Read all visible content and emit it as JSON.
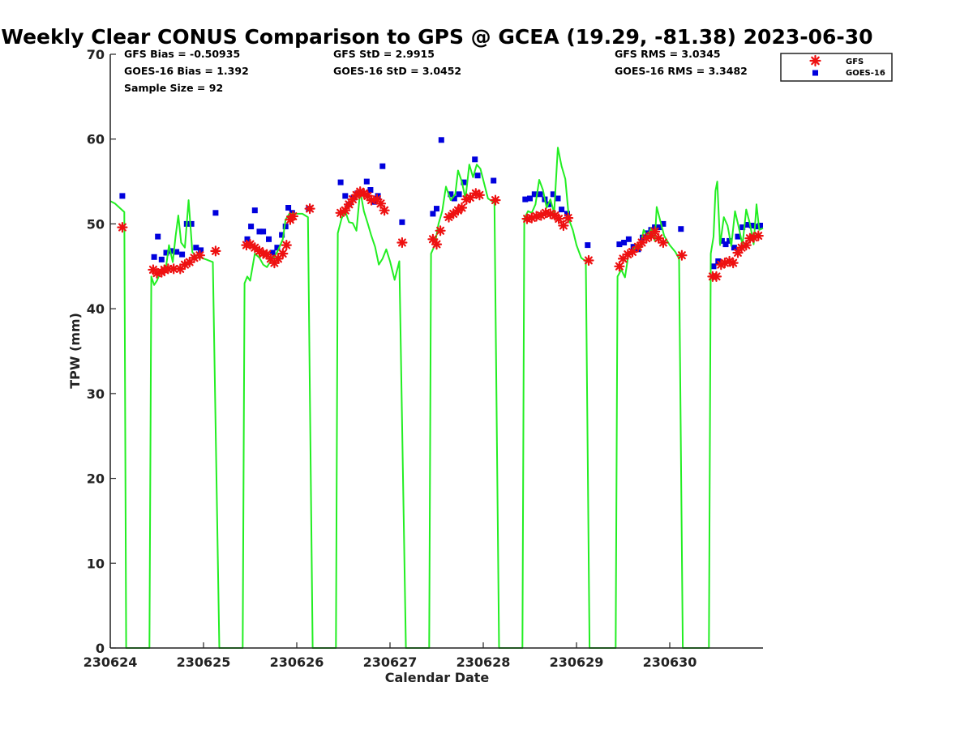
{
  "stats": {
    "gfs_bias": "GFS Bias = -0.50935",
    "goes_bias": "GOES-16 Bias = 1.392",
    "sample_size": "Sample Size = 92",
    "gfs_std": "GFS StD = 2.9915",
    "goes_std": "GOES-16 StD = 3.0452",
    "gfs_rms": "GFS RMS = 3.0345",
    "goes_rms": "GOES-16 RMS = 3.3482"
  },
  "colors": {
    "gfs": "#ee1111",
    "goes": "#0000dd",
    "gps": "#22ee22"
  },
  "chart_data": {
    "type": "scatter",
    "title": "Weekly Clear CONUS Comparison to GPS @ GCEA (19.29, -81.38) 2023-06-30",
    "xlabel": "Calendar Date",
    "ylabel": "TPW (mm)",
    "xlim": [
      0,
      7
    ],
    "ylim": [
      0,
      70
    ],
    "x_ticks": [
      0,
      1,
      2,
      3,
      4,
      5,
      6
    ],
    "x_tick_labels": [
      "230624",
      "230625",
      "230626",
      "230627",
      "230628",
      "230629",
      "230630"
    ],
    "y_ticks": [
      0,
      10,
      20,
      30,
      40,
      50,
      60,
      70
    ],
    "grid": false,
    "legend_position": "top-right",
    "series": [
      {
        "name": "GFS",
        "marker": "asterisk",
        "color": "#ee1111",
        "points": [
          [
            0.13,
            49.6
          ],
          [
            0.46,
            44.6
          ],
          [
            0.5,
            44.2
          ],
          [
            0.55,
            44.3
          ],
          [
            0.58,
            44.6
          ],
          [
            0.62,
            44.7
          ],
          [
            0.68,
            44.7
          ],
          [
            0.75,
            44.7
          ],
          [
            0.8,
            45.2
          ],
          [
            0.85,
            45.5
          ],
          [
            0.9,
            46.0
          ],
          [
            0.96,
            46.3
          ],
          [
            1.13,
            46.8
          ],
          [
            1.46,
            47.5
          ],
          [
            1.5,
            47.6
          ],
          [
            1.55,
            47.2
          ],
          [
            1.6,
            46.8
          ],
          [
            1.64,
            46.5
          ],
          [
            1.68,
            46.4
          ],
          [
            1.72,
            45.9
          ],
          [
            1.76,
            45.4
          ],
          [
            1.8,
            45.9
          ],
          [
            1.85,
            46.5
          ],
          [
            1.89,
            47.5
          ],
          [
            1.93,
            50.5
          ],
          [
            1.96,
            50.9
          ],
          [
            2.14,
            51.8
          ],
          [
            2.47,
            51.3
          ],
          [
            2.52,
            51.6
          ],
          [
            2.56,
            52.3
          ],
          [
            2.6,
            52.9
          ],
          [
            2.64,
            53.4
          ],
          [
            2.68,
            53.8
          ],
          [
            2.72,
            53.6
          ],
          [
            2.76,
            53.3
          ],
          [
            2.8,
            52.8
          ],
          [
            2.86,
            52.9
          ],
          [
            2.9,
            52.4
          ],
          [
            2.94,
            51.6
          ],
          [
            3.13,
            47.8
          ],
          [
            3.46,
            48.2
          ],
          [
            3.5,
            47.6
          ],
          [
            3.54,
            49.2
          ],
          [
            3.63,
            50.8
          ],
          [
            3.68,
            51.2
          ],
          [
            3.73,
            51.6
          ],
          [
            3.77,
            51.9
          ],
          [
            3.82,
            52.9
          ],
          [
            3.86,
            53.1
          ],
          [
            3.92,
            53.6
          ],
          [
            3.96,
            53.4
          ],
          [
            4.13,
            52.8
          ],
          [
            4.47,
            50.6
          ],
          [
            4.52,
            50.7
          ],
          [
            4.57,
            50.9
          ],
          [
            4.62,
            51.0
          ],
          [
            4.67,
            51.3
          ],
          [
            4.72,
            51.2
          ],
          [
            4.77,
            51.0
          ],
          [
            4.81,
            50.6
          ],
          [
            4.86,
            49.8
          ],
          [
            4.91,
            50.7
          ],
          [
            5.13,
            45.7
          ],
          [
            5.46,
            45.0
          ],
          [
            5.5,
            45.9
          ],
          [
            5.55,
            46.4
          ],
          [
            5.6,
            46.7
          ],
          [
            5.66,
            47.3
          ],
          [
            5.7,
            47.8
          ],
          [
            5.75,
            48.3
          ],
          [
            5.8,
            48.6
          ],
          [
            5.84,
            49.1
          ],
          [
            5.88,
            48.3
          ],
          [
            5.93,
            47.8
          ],
          [
            6.13,
            46.3
          ],
          [
            6.46,
            43.8
          ],
          [
            6.5,
            43.8
          ],
          [
            6.55,
            45.2
          ],
          [
            6.59,
            45.4
          ],
          [
            6.64,
            45.6
          ],
          [
            6.68,
            45.4
          ],
          [
            6.73,
            46.6
          ],
          [
            6.77,
            47.2
          ],
          [
            6.82,
            47.5
          ],
          [
            6.86,
            48.3
          ],
          [
            6.9,
            48.4
          ],
          [
            6.95,
            48.6
          ]
        ]
      },
      {
        "name": "GOES-16",
        "marker": "square",
        "color": "#0000dd",
        "points": [
          [
            0.13,
            53.3
          ],
          [
            0.47,
            46.1
          ],
          [
            0.51,
            48.5
          ],
          [
            0.55,
            45.8
          ],
          [
            0.6,
            46.6
          ],
          [
            0.65,
            46.8
          ],
          [
            0.71,
            46.7
          ],
          [
            0.77,
            46.4
          ],
          [
            0.82,
            50.0
          ],
          [
            0.87,
            50.0
          ],
          [
            0.92,
            47.2
          ],
          [
            0.97,
            46.9
          ],
          [
            1.13,
            51.3
          ],
          [
            1.47,
            48.2
          ],
          [
            1.51,
            49.7
          ],
          [
            1.55,
            51.6
          ],
          [
            1.6,
            49.1
          ],
          [
            1.64,
            49.1
          ],
          [
            1.7,
            48.2
          ],
          [
            1.74,
            46.6
          ],
          [
            1.79,
            47.2
          ],
          [
            1.84,
            48.7
          ],
          [
            1.88,
            49.7
          ],
          [
            1.91,
            51.9
          ],
          [
            1.95,
            51.3
          ],
          [
            2.13,
            51.8
          ],
          [
            2.47,
            54.9
          ],
          [
            2.52,
            53.3
          ],
          [
            2.56,
            52.3
          ],
          [
            2.61,
            53.1
          ],
          [
            2.65,
            53.6
          ],
          [
            2.7,
            53.6
          ],
          [
            2.75,
            55.0
          ],
          [
            2.79,
            54.0
          ],
          [
            2.83,
            52.6
          ],
          [
            2.87,
            53.3
          ],
          [
            2.92,
            56.8
          ],
          [
            3.13,
            50.2
          ],
          [
            3.46,
            51.2
          ],
          [
            3.5,
            51.8
          ],
          [
            3.55,
            59.9
          ],
          [
            3.65,
            53.5
          ],
          [
            3.69,
            53.0
          ],
          [
            3.74,
            53.5
          ],
          [
            3.79,
            54.9
          ],
          [
            3.91,
            57.6
          ],
          [
            3.94,
            55.7
          ],
          [
            4.11,
            55.1
          ],
          [
            4.45,
            52.9
          ],
          [
            4.5,
            53.0
          ],
          [
            4.55,
            53.5
          ],
          [
            4.61,
            53.5
          ],
          [
            4.66,
            52.9
          ],
          [
            4.7,
            52.3
          ],
          [
            4.75,
            53.5
          ],
          [
            4.8,
            53.0
          ],
          [
            4.84,
            51.7
          ],
          [
            4.9,
            51.2
          ],
          [
            5.12,
            47.5
          ],
          [
            5.46,
            47.6
          ],
          [
            5.51,
            47.8
          ],
          [
            5.56,
            48.2
          ],
          [
            5.61,
            47.3
          ],
          [
            5.66,
            47.0
          ],
          [
            5.71,
            48.4
          ],
          [
            5.76,
            48.9
          ],
          [
            5.8,
            49.3
          ],
          [
            5.84,
            49.6
          ],
          [
            5.89,
            49.6
          ],
          [
            5.93,
            50.0
          ],
          [
            6.12,
            49.4
          ],
          [
            6.47,
            45.0
          ],
          [
            6.52,
            45.6
          ],
          [
            6.56,
            48.0
          ],
          [
            6.6,
            47.6
          ],
          [
            6.64,
            48.0
          ],
          [
            6.69,
            47.2
          ],
          [
            6.73,
            48.5
          ],
          [
            6.78,
            49.6
          ],
          [
            6.83,
            49.9
          ],
          [
            6.88,
            49.8
          ],
          [
            6.93,
            49.7
          ],
          [
            6.97,
            49.8
          ]
        ]
      },
      {
        "name": "GPS",
        "type": "line",
        "color": "#22ee22",
        "points": [
          [
            0.0,
            52.7
          ],
          [
            0.05,
            52.4
          ],
          [
            0.1,
            51.9
          ],
          [
            0.15,
            51.4
          ],
          [
            0.17,
            0
          ],
          [
            0.42,
            0
          ],
          [
            0.44,
            43.8
          ],
          [
            0.47,
            42.8
          ],
          [
            0.5,
            43.3
          ],
          [
            0.55,
            44.6
          ],
          [
            0.6,
            45.1
          ],
          [
            0.63,
            47.5
          ],
          [
            0.67,
            45.5
          ],
          [
            0.7,
            48.5
          ],
          [
            0.73,
            51.0
          ],
          [
            0.76,
            47.8
          ],
          [
            0.8,
            47.2
          ],
          [
            0.84,
            52.8
          ],
          [
            0.88,
            46.7
          ],
          [
            0.93,
            46.0
          ],
          [
            0.98,
            46.0
          ],
          [
            1.03,
            45.8
          ],
          [
            1.1,
            45.5
          ],
          [
            1.17,
            0
          ],
          [
            1.42,
            0
          ],
          [
            1.44,
            43.0
          ],
          [
            1.47,
            43.8
          ],
          [
            1.5,
            43.3
          ],
          [
            1.55,
            46.5
          ],
          [
            1.6,
            46.0
          ],
          [
            1.64,
            45.2
          ],
          [
            1.68,
            44.9
          ],
          [
            1.72,
            45.6
          ],
          [
            1.76,
            46.1
          ],
          [
            1.8,
            46.9
          ],
          [
            1.85,
            48.2
          ],
          [
            1.88,
            50.5
          ],
          [
            1.92,
            51.2
          ],
          [
            2.0,
            51.2
          ],
          [
            2.06,
            51.2
          ],
          [
            2.12,
            50.8
          ],
          [
            2.17,
            0
          ],
          [
            2.42,
            0
          ],
          [
            2.44,
            48.9
          ],
          [
            2.48,
            50.6
          ],
          [
            2.52,
            51.5
          ],
          [
            2.56,
            50.2
          ],
          [
            2.6,
            50.1
          ],
          [
            2.64,
            49.2
          ],
          [
            2.68,
            53.9
          ],
          [
            2.72,
            51.5
          ],
          [
            2.76,
            50.1
          ],
          [
            2.8,
            48.6
          ],
          [
            2.84,
            47.3
          ],
          [
            2.88,
            45.2
          ],
          [
            2.92,
            45.9
          ],
          [
            2.96,
            47.0
          ],
          [
            3.0,
            45.6
          ],
          [
            3.05,
            43.4
          ],
          [
            3.1,
            45.6
          ],
          [
            3.17,
            0
          ],
          [
            3.42,
            0
          ],
          [
            3.44,
            46.5
          ],
          [
            3.48,
            47.5
          ],
          [
            3.52,
            50.0
          ],
          [
            3.56,
            51.5
          ],
          [
            3.6,
            54.4
          ],
          [
            3.65,
            52.8
          ],
          [
            3.7,
            53.5
          ],
          [
            3.73,
            56.3
          ],
          [
            3.77,
            55.0
          ],
          [
            3.81,
            53.0
          ],
          [
            3.85,
            57.0
          ],
          [
            3.89,
            55.5
          ],
          [
            3.93,
            57.0
          ],
          [
            3.97,
            56.5
          ],
          [
            4.05,
            53.0
          ],
          [
            4.12,
            52.5
          ],
          [
            4.17,
            0
          ],
          [
            4.42,
            0
          ],
          [
            4.44,
            50.6
          ],
          [
            4.48,
            51.5
          ],
          [
            4.52,
            51.3
          ],
          [
            4.56,
            52.3
          ],
          [
            4.6,
            55.2
          ],
          [
            4.64,
            54.0
          ],
          [
            4.68,
            51.9
          ],
          [
            4.72,
            52.9
          ],
          [
            4.76,
            51.3
          ],
          [
            4.8,
            59.0
          ],
          [
            4.84,
            56.8
          ],
          [
            4.88,
            55.3
          ],
          [
            4.92,
            50.5
          ],
          [
            4.96,
            49.3
          ],
          [
            5.0,
            47.5
          ],
          [
            5.05,
            46.0
          ],
          [
            5.1,
            45.6
          ],
          [
            5.14,
            0
          ],
          [
            5.42,
            0
          ],
          [
            5.44,
            43.8
          ],
          [
            5.48,
            44.6
          ],
          [
            5.52,
            43.7
          ],
          [
            5.56,
            46.6
          ],
          [
            5.6,
            46.5
          ],
          [
            5.64,
            47.6
          ],
          [
            5.68,
            47.0
          ],
          [
            5.72,
            49.3
          ],
          [
            5.76,
            48.5
          ],
          [
            5.8,
            49.5
          ],
          [
            5.84,
            48.0
          ],
          [
            5.86,
            52.0
          ],
          [
            5.9,
            50.3
          ],
          [
            5.94,
            48.6
          ],
          [
            6.0,
            47.5
          ],
          [
            6.06,
            46.7
          ],
          [
            6.1,
            45.9
          ],
          [
            6.14,
            0
          ],
          [
            6.42,
            0
          ],
          [
            6.44,
            46.5
          ],
          [
            6.47,
            48.5
          ],
          [
            6.49,
            53.9
          ],
          [
            6.51,
            55.0
          ],
          [
            6.54,
            47.5
          ],
          [
            6.58,
            50.8
          ],
          [
            6.62,
            49.8
          ],
          [
            6.66,
            47.4
          ],
          [
            6.7,
            51.5
          ],
          [
            6.74,
            49.6
          ],
          [
            6.78,
            47.5
          ],
          [
            6.82,
            51.7
          ],
          [
            6.86,
            50.0
          ],
          [
            6.9,
            47.6
          ],
          [
            6.93,
            52.3
          ],
          [
            6.96,
            49.3
          ],
          [
            7.0,
            49.5
          ]
        ]
      }
    ]
  }
}
